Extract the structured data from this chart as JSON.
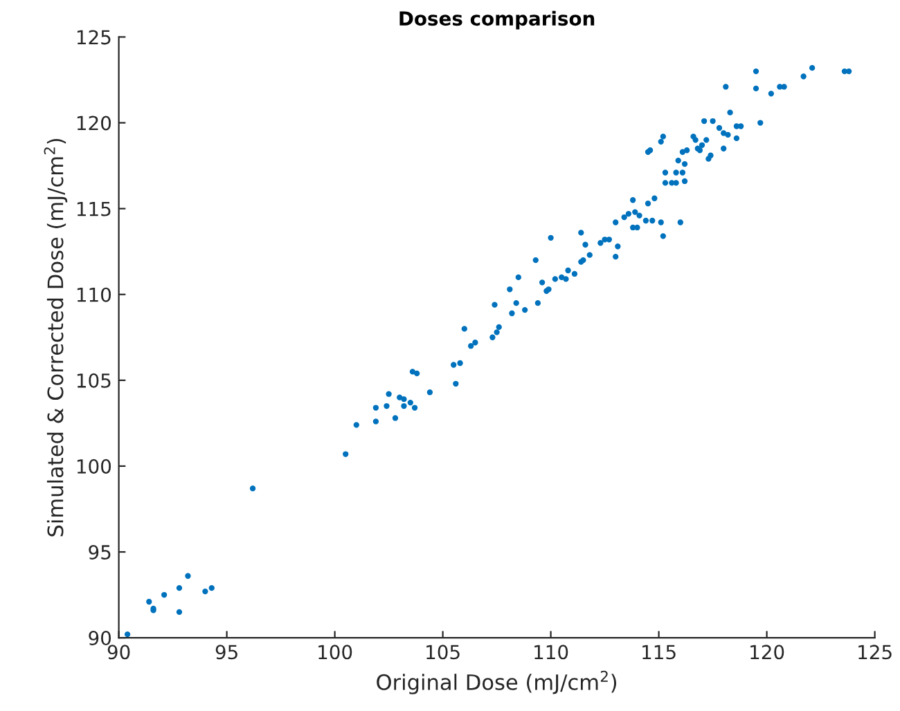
{
  "chart_data": {
    "type": "scatter",
    "title": "Doses comparison",
    "xlabel": "Original Dose (mJ/cm$^{2}$)",
    "ylabel": "Simulated & Corrected Dose (mJ/cm$^{2}$)",
    "xlim": [
      90,
      125
    ],
    "ylim": [
      90,
      125
    ],
    "xticks": [
      90,
      95,
      100,
      105,
      110,
      115,
      120,
      125
    ],
    "yticks": [
      90,
      95,
      100,
      105,
      110,
      115,
      120,
      125
    ],
    "grid": false,
    "marker": "circle",
    "series": [
      {
        "color": "#0072bd",
        "x": [
          90.4,
          91.4,
          91.6,
          91.6,
          92.1,
          92.8,
          92.8,
          93.2,
          94.0,
          94.3,
          96.2,
          100.5,
          101.0,
          101.9,
          101.9,
          102.4,
          102.5,
          102.8,
          103.0,
          103.2,
          103.2,
          103.5,
          103.7,
          103.6,
          103.8,
          104.4,
          105.5,
          105.6,
          105.8,
          106.0,
          106.3,
          106.5,
          107.3,
          107.4,
          107.5,
          107.6,
          108.1,
          108.2,
          108.4,
          108.5,
          108.8,
          109.3,
          109.4,
          109.6,
          109.8,
          109.9,
          110.0,
          110.2,
          110.5,
          110.7,
          110.8,
          111.1,
          111.4,
          111.5,
          111.4,
          111.6,
          111.8,
          112.3,
          112.5,
          112.7,
          113.0,
          113.0,
          113.1,
          113.4,
          113.6,
          113.8,
          113.8,
          113.9,
          114.0,
          114.1,
          114.4,
          114.5,
          114.7,
          114.8,
          115.1,
          115.2,
          115.3,
          115.3,
          114.6,
          114.5,
          115.1,
          115.2,
          115.6,
          115.8,
          115.8,
          115.9,
          116.0,
          116.1,
          116.2,
          116.1,
          116.3,
          116.2,
          116.6,
          116.7,
          116.8,
          116.9,
          117.0,
          117.1,
          117.2,
          117.3,
          117.4,
          117.5,
          117.8,
          118.0,
          118.0,
          118.2,
          118.1,
          118.3,
          118.6,
          118.6,
          118.8,
          119.5,
          119.5,
          119.7,
          120.2,
          120.6,
          120.8,
          121.7,
          122.1,
          123.6,
          123.8
        ],
        "values": [
          90.2,
          92.1,
          91.7,
          91.6,
          92.5,
          91.5,
          92.9,
          93.6,
          92.7,
          92.9,
          98.7,
          100.7,
          102.4,
          102.6,
          103.4,
          103.5,
          104.2,
          102.8,
          104.0,
          103.9,
          103.5,
          103.7,
          103.4,
          105.5,
          105.4,
          104.3,
          105.9,
          104.8,
          106.0,
          108.0,
          107.0,
          107.2,
          107.5,
          109.4,
          107.8,
          108.1,
          110.3,
          108.9,
          109.5,
          111.0,
          109.1,
          112.0,
          109.5,
          110.7,
          110.2,
          110.3,
          113.3,
          110.9,
          111.0,
          110.9,
          111.4,
          111.2,
          111.9,
          112.0,
          113.6,
          112.9,
          112.3,
          113.0,
          113.2,
          113.2,
          112.2,
          114.2,
          112.8,
          114.5,
          114.7,
          115.5,
          113.9,
          114.8,
          113.9,
          114.6,
          114.3,
          115.3,
          114.3,
          115.6,
          114.2,
          113.4,
          116.5,
          117.1,
          118.4,
          118.3,
          118.9,
          119.2,
          116.5,
          117.1,
          116.5,
          117.8,
          114.2,
          117.1,
          116.6,
          118.3,
          118.4,
          117.6,
          119.2,
          119.0,
          118.5,
          118.4,
          118.7,
          120.1,
          119.0,
          117.9,
          118.1,
          120.1,
          119.7,
          118.5,
          119.4,
          119.3,
          122.1,
          120.6,
          119.1,
          119.8,
          119.8,
          123.0,
          122.0,
          120.0,
          121.7,
          122.1,
          122.1,
          122.7,
          123.2,
          123.0,
          123.0
        ]
      }
    ]
  }
}
